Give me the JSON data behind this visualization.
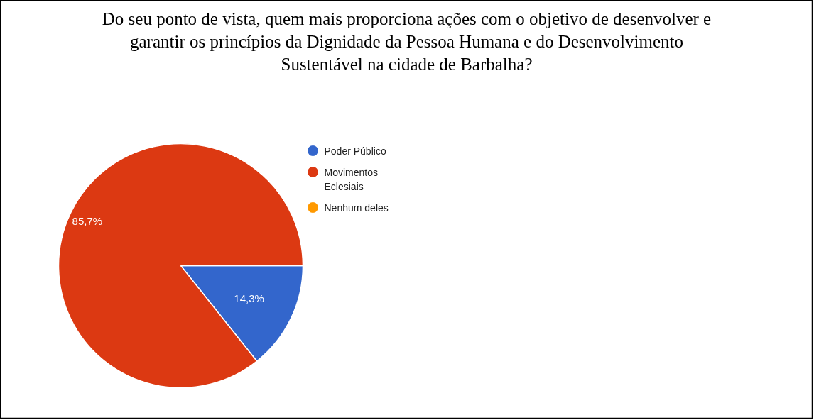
{
  "chart_data": {
    "type": "pie",
    "title": "Do seu ponto de vista, quem mais proporciona ações com o objetivo de desenvolver e garantir os princípios da Dignidade da Pessoa Humana e do Desenvolvimento Sustentável na cidade de Barbalha?",
    "categories": [
      "Poder Público",
      "Movimentos Eclesiais",
      "Nenhum deles"
    ],
    "values": [
      14.3,
      85.7,
      0
    ],
    "colors": [
      "#3366cc",
      "#dc3912",
      "#ff9900"
    ],
    "value_labels": [
      "14,3%",
      "85,7%",
      null
    ],
    "legend": "right"
  }
}
